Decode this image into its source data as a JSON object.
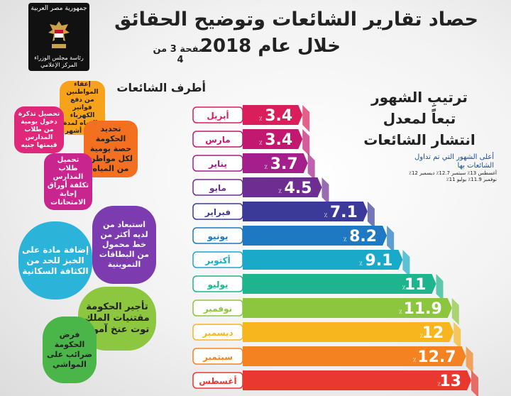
{
  "logo": {
    "top_text": "جمهورية مصر العربية",
    "bottom_text": "رئاسة مجلس الوزراء المركز الإعلامي"
  },
  "header": {
    "title_line1": "حصاد تقارير الشائعات وتوضيح الحقائق",
    "title_line2": "خلال عام 2018",
    "page_indicator": "صفحة 3 من 4"
  },
  "side_panel": {
    "title_lines": [
      "ترتيبِ الشهور",
      "تبعاً لمعدل",
      "انتشار الشائعات"
    ],
    "note": "أعلى الشهور التي تم تداول الشائعات بها",
    "extra": "أغسطس 13٪ سبتمبر 12.7٪ ديسمبر 12٪ نوفمبر 11.9٪ يوليو 11٪"
  },
  "rumors": {
    "title": "أطرف الشائعات",
    "items": [
      "إعفاء المواطنين من دفع فواتير الكهرباء والمياه لمدة أربعة أشهر",
      "تحصيل تذكرة دخول يومية من طلاب المدارس قيمتها جنيه",
      "تحديد الحكومة حصة يومية لكل مواطن من المياه",
      "تحميل طلاب المدارس تكلفة أوراق إجابة الامتحانات",
      "استبعاد من لديه أكثر من خط محمول من البطاقات التموينية",
      "إضافة مادة على الخبز للحد من الكثافة السكانية",
      "تأجير الحكومة مقتنيات الملك توت عنخ آمون",
      "فرض الحكومة ضرائب على المواشي"
    ]
  },
  "chart_data": {
    "type": "bar",
    "categories": [
      "أبريل",
      "مارس",
      "يناير",
      "مايو",
      "فبراير",
      "يونيو",
      "أكتوبر",
      "يوليو",
      "نوفمبر",
      "ديسمبر",
      "سبتمبر",
      "أغسطس"
    ],
    "values": [
      3.4,
      3.4,
      3.7,
      4.5,
      7.1,
      8.2,
      9.1,
      11,
      11.9,
      12,
      12.7,
      13
    ],
    "value_labels": [
      "3.4",
      "3.4",
      "3.7",
      "4.5",
      "7.1",
      "8.2",
      "9.1",
      "11",
      "11.9",
      "12",
      "12.7",
      "13"
    ],
    "unit": "٪",
    "colors": [
      "#d91e5b",
      "#c2186f",
      "#a41f8b",
      "#6e2d91",
      "#3b3a98",
      "#1e78c2",
      "#1ba9c9",
      "#1eb58e",
      "#8cc63f",
      "#f7b51e",
      "#f58220",
      "#e8382f"
    ],
    "ylim": [
      0,
      13
    ]
  }
}
